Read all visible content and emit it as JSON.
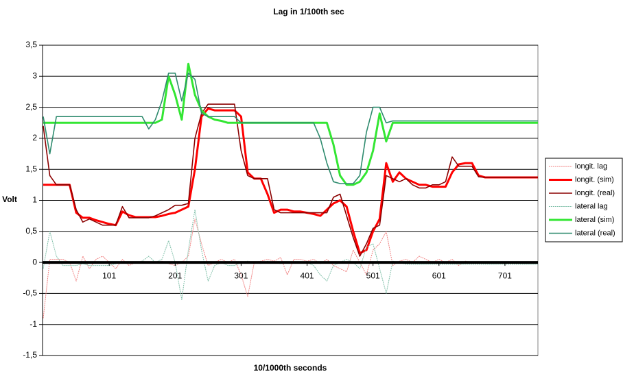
{
  "chart_data": {
    "type": "line",
    "title": "Lag in 1/100th sec",
    "x_label": "10/1000th seconds",
    "y_label": "Volt",
    "x": [
      1,
      11,
      21,
      31,
      41,
      51,
      61,
      71,
      81,
      91,
      101,
      111,
      121,
      131,
      141,
      151,
      161,
      171,
      181,
      191,
      201,
      211,
      221,
      231,
      241,
      251,
      261,
      271,
      281,
      291,
      301,
      311,
      321,
      331,
      341,
      351,
      361,
      371,
      381,
      391,
      401,
      411,
      421,
      431,
      441,
      451,
      461,
      471,
      481,
      491,
      501,
      511,
      521,
      531,
      541,
      551,
      561,
      571,
      581,
      591,
      601,
      611,
      621,
      631,
      641,
      651,
      661,
      671,
      681,
      691,
      701,
      711,
      721,
      731,
      741,
      751
    ],
    "xlim": [
      1,
      751
    ],
    "xticks": [
      101,
      201,
      301,
      401,
      501,
      601,
      701
    ],
    "ylim": [
      -1.5,
      3.5
    ],
    "yticks": [
      {
        "value": -1.5,
        "label": "-1,5"
      },
      -1,
      {
        "value": -0.5,
        "label": "-0,5"
      },
      0,
      {
        "value": 0.5,
        "label": "0,5"
      },
      1,
      {
        "value": 1.5,
        "label": "1,5"
      },
      2,
      {
        "value": 2.5,
        "label": "2,5"
      },
      3,
      {
        "value": 3.5,
        "label": "3,5"
      }
    ],
    "grid": true,
    "legend": "right",
    "series": [
      {
        "name": "longit. lag",
        "color": "#f08080",
        "values": [
          -0.9,
          0.05,
          0.05,
          0.05,
          0.0,
          -0.3,
          0.1,
          -0.1,
          0.05,
          0.1,
          0,
          -0.1,
          0.05,
          -0.05,
          0.0,
          0.02,
          0.0,
          0.0,
          0.02,
          -0.02,
          -0.05,
          0,
          0.1,
          0.7,
          0.3,
          -0.05,
          0,
          0.05,
          0.0,
          0.05,
          -0.2,
          -0.55,
          0,
          0.02,
          0.05,
          0.02,
          0.08,
          -0.2,
          0.05,
          0.05,
          0.02,
          0.05,
          -0.02,
          0.05,
          -0.05,
          -0.1,
          -0.15,
          0.2,
          0.0,
          -0.2,
          0.2,
          0.3,
          0.5,
          -0.05,
          0.02,
          0.05,
          0.0,
          0.1,
          0.05,
          0.0,
          0.05,
          0.0,
          0.05,
          -0.05,
          0.02,
          0.0,
          0,
          0,
          0,
          0,
          0,
          0,
          0,
          0,
          0,
          0
        ]
      },
      {
        "name": "longit. (sim)",
        "color": "#ff0000",
        "values": [
          1.25,
          1.25,
          1.25,
          1.25,
          1.25,
          0.8,
          0.72,
          0.72,
          0.68,
          0.65,
          0.62,
          0.6,
          0.82,
          0.76,
          0.73,
          0.73,
          0.73,
          0.73,
          0.75,
          0.78,
          0.8,
          0.85,
          0.9,
          1.5,
          2.35,
          2.48,
          2.45,
          2.45,
          2.45,
          2.45,
          2.35,
          1.45,
          1.35,
          1.35,
          1.1,
          0.8,
          0.85,
          0.85,
          0.82,
          0.82,
          0.8,
          0.78,
          0.75,
          0.85,
          0.95,
          1.0,
          0.9,
          0.5,
          0.15,
          0.2,
          0.5,
          0.7,
          1.6,
          1.3,
          1.45,
          1.35,
          1.3,
          1.25,
          1.25,
          1.22,
          1.22,
          1.22,
          1.45,
          1.58,
          1.6,
          1.6,
          1.4,
          1.37,
          1.37,
          1.37,
          1.37,
          1.37,
          1.37,
          1.37,
          1.37,
          1.37
        ]
      },
      {
        "name": "longit. (real)",
        "color": "#8b0000",
        "values": [
          2.2,
          1.4,
          1.25,
          1.25,
          1.25,
          0.85,
          0.65,
          0.7,
          0.65,
          0.6,
          0.6,
          0.6,
          0.9,
          0.72,
          0.72,
          0.72,
          0.72,
          0.75,
          0.8,
          0.85,
          0.92,
          0.92,
          0.95,
          2.0,
          2.4,
          2.55,
          2.55,
          2.55,
          2.55,
          2.55,
          1.8,
          1.4,
          1.35,
          1.35,
          1.35,
          0.85,
          0.8,
          0.8,
          0.8,
          0.8,
          0.8,
          0.8,
          0.8,
          0.8,
          1.05,
          1.1,
          0.75,
          0.4,
          0.1,
          0.3,
          0.55,
          0.6,
          1.4,
          1.35,
          1.3,
          1.35,
          1.25,
          1.2,
          1.2,
          1.25,
          1.25,
          1.3,
          1.7,
          1.55,
          1.55,
          1.55,
          1.38,
          1.37,
          1.37,
          1.37,
          1.37,
          1.37,
          1.37,
          1.37,
          1.37,
          1.37
        ]
      },
      {
        "name": "lateral lag",
        "color": "#7fbfa8",
        "values": [
          -0.1,
          0.5,
          0.1,
          -0.05,
          -0.05,
          -0.05,
          -0.02,
          -0.05,
          -0.05,
          -0.05,
          -0.05,
          -0.02,
          0,
          0,
          0,
          0.02,
          0.1,
          0.0,
          0.05,
          0.35,
          0,
          -0.6,
          0.2,
          0.85,
          0.2,
          -0.3,
          -0.05,
          0.0,
          -0.05,
          -0.05,
          0.0,
          0.02,
          0.0,
          -0.02,
          0.02,
          0.0,
          -0.02,
          0.0,
          0.0,
          0.0,
          0.0,
          -0.05,
          -0.2,
          -0.3,
          -0.05,
          0.0,
          0.05,
          0.0,
          -0.1,
          0.25,
          0.3,
          -0.1,
          -0.5,
          0.02,
          0,
          -0.03,
          -0.03,
          -0.03,
          -0.03,
          -0.03,
          -0.03,
          -0.03,
          -0.03,
          -0.03,
          -0.03,
          -0.03,
          -0.03,
          -0.03,
          -0.03,
          -0.03,
          -0.03,
          -0.03,
          -0.03,
          -0.03,
          -0.03,
          -0.03
        ]
      },
      {
        "name": "lateral (sim)",
        "color": "#33e633",
        "values": [
          2.25,
          2.25,
          2.25,
          2.25,
          2.25,
          2.25,
          2.25,
          2.25,
          2.25,
          2.25,
          2.25,
          2.25,
          2.25,
          2.25,
          2.25,
          2.25,
          2.25,
          2.25,
          2.3,
          3.0,
          2.7,
          2.3,
          3.2,
          2.7,
          2.45,
          2.35,
          2.3,
          2.28,
          2.25,
          2.25,
          2.25,
          2.25,
          2.25,
          2.25,
          2.25,
          2.25,
          2.25,
          2.25,
          2.25,
          2.25,
          2.25,
          2.25,
          2.25,
          2.25,
          1.9,
          1.4,
          1.25,
          1.25,
          1.3,
          1.45,
          1.8,
          2.4,
          1.95,
          2.25,
          2.25,
          2.25,
          2.25,
          2.25,
          2.25,
          2.25,
          2.25,
          2.25,
          2.25,
          2.25,
          2.25,
          2.25,
          2.25,
          2.25,
          2.25,
          2.25,
          2.25,
          2.25,
          2.25,
          2.25,
          2.25,
          2.25
        ]
      },
      {
        "name": "lateral (real)",
        "color": "#2e8b6e",
        "values": [
          2.35,
          1.75,
          2.35,
          2.35,
          2.35,
          2.35,
          2.35,
          2.35,
          2.35,
          2.35,
          2.35,
          2.35,
          2.35,
          2.35,
          2.35,
          2.35,
          2.15,
          2.3,
          2.6,
          3.05,
          3.05,
          2.6,
          3.05,
          2.95,
          2.4,
          2.35,
          2.35,
          2.35,
          2.35,
          2.35,
          2.25,
          2.25,
          2.25,
          2.25,
          2.25,
          2.25,
          2.25,
          2.25,
          2.25,
          2.25,
          2.25,
          2.25,
          2.0,
          1.6,
          1.3,
          1.27,
          1.27,
          1.27,
          1.4,
          2.1,
          2.5,
          2.5,
          2.25,
          2.28,
          2.28,
          2.28,
          2.28,
          2.28,
          2.28,
          2.28,
          2.28,
          2.28,
          2.28,
          2.28,
          2.28,
          2.28,
          2.28,
          2.28,
          2.28,
          2.28,
          2.28,
          2.28,
          2.28,
          2.28,
          2.28,
          2.28
        ]
      }
    ]
  }
}
